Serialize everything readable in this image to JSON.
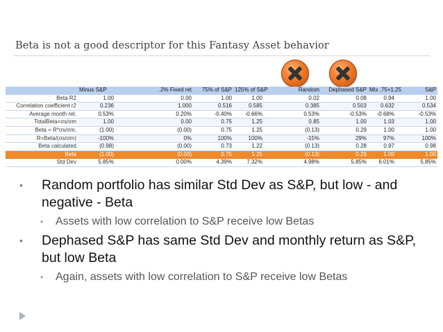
{
  "slide": {
    "title": "Beta is not a good descriptor for this Fantasy Asset behavior"
  },
  "icons": {
    "random_mark": "x-circle-icon",
    "dephased_mark": "x-circle-icon",
    "mark_color": "#f07a2a",
    "nav": "next-arrow-icon"
  },
  "table": {
    "headers": [
      "Minus S&P",
      ".2% Fixed ret",
      "75% of S&P",
      "125% of S&P",
      "Random",
      "Dephased S&P",
      "Mix .75+1.25",
      "S&P"
    ],
    "rows": [
      {
        "label": "Beta  R2",
        "values": [
          "1.00",
          "0.00",
          "1.00",
          "1.00",
          "0.02",
          "0.08",
          "0.94",
          "1.00"
        ]
      },
      {
        "label": "Correlation coefficient r2",
        "values": [
          "0.236",
          "1.000",
          "0.516",
          "0.585",
          "0.385",
          "0.503",
          "0.632",
          "0.534"
        ]
      },
      {
        "label": "Average month ret.",
        "values": [
          "0.53%",
          "0.20%",
          "-0.40%",
          "-0.66%",
          "0.53%",
          "-0.53%",
          "-0.68%",
          "-0.53%"
        ]
      },
      {
        "label": "TotalBeta=σs/σm",
        "values": [
          "1.00",
          "0.00",
          "0.75",
          "1.25",
          "0.85",
          "1.00",
          "1.03",
          "1.00"
        ]
      },
      {
        "label": "Beta = R*σs/σm.",
        "values": [
          "(1.00)",
          "(0.00)",
          "0.75",
          "1.25",
          "(0.13)",
          "0.29",
          "1.00",
          "1.00"
        ]
      },
      {
        "label": "R=Beta/(σs/σm)",
        "values": [
          "-100%",
          "0%",
          "100%",
          "100%",
          "-15%",
          "29%",
          "97%",
          "100%"
        ]
      },
      {
        "label": "Beta calculated",
        "values": [
          "(0.98)",
          "(0.00)",
          "0.73",
          "1.22",
          "(0.13)",
          "0.28",
          "0.97",
          "0.98"
        ]
      },
      {
        "label": "Beta",
        "values": [
          "(1.00)",
          "(0.00)",
          "0.75",
          "1.25",
          "(0.13)",
          "0.29",
          "1.00",
          "1.00"
        ]
      },
      {
        "label": "Std Dev",
        "values": [
          "5.85%",
          "0.00%",
          "4.39%",
          "7.32%",
          "4.98%",
          "5.85%",
          "6.01%",
          "5.85%"
        ]
      }
    ],
    "highlight_color": "#ef8a2a",
    "header_color": "#b9cfee"
  },
  "bullets": [
    {
      "text": "Random portfolio has similar Std Dev as S&P,  but low - and negative -  Beta",
      "sub": "Assets with low correlation to S&P receive low Betas"
    },
    {
      "text": "Dephased S&P has same Std Dev  and monthly return as S&P, but low Beta",
      "sub": "Again, assets with low correlation to S&P receive low Betas"
    }
  ]
}
